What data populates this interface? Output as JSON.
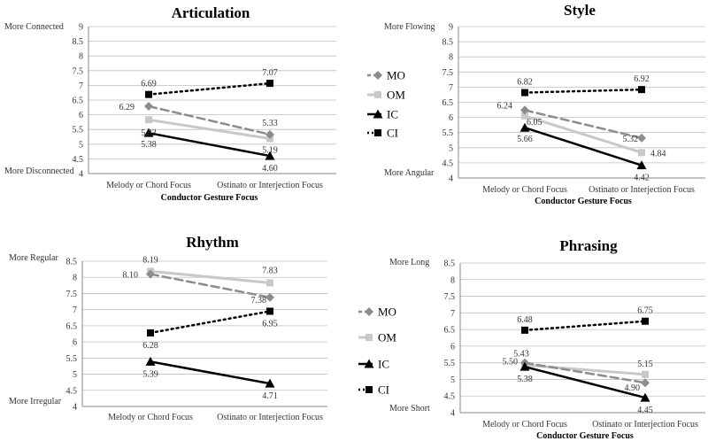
{
  "chart_data": [
    {
      "type": "line",
      "title": "Articulation",
      "xlabel": "Conductor Gesture Focus",
      "ylabel": "",
      "ylim": [
        4,
        9
      ],
      "yticks": [
        "4",
        "4.5",
        "5",
        "5.5",
        "6",
        "6.5",
        "7",
        "7.5",
        "8",
        "8.5",
        "9"
      ],
      "anchor_high": "More Connected",
      "anchor_low": "More Disconnected",
      "categories": [
        "Melody or Chord Focus",
        "Ostinato or Interjection Focus"
      ],
      "series": [
        {
          "name": "MO",
          "values": [
            6.29,
            5.33
          ],
          "labels": [
            "6.29",
            "5.33"
          ]
        },
        {
          "name": "OM",
          "values": [
            5.83,
            5.19
          ],
          "labels": [
            "5.83",
            "5.19"
          ]
        },
        {
          "name": "IC",
          "values": [
            5.38,
            4.6
          ],
          "labels": [
            "5.38",
            "4.60"
          ]
        },
        {
          "name": "CI",
          "values": [
            6.69,
            7.07
          ],
          "labels": [
            "6.69",
            "7.07"
          ]
        }
      ]
    },
    {
      "type": "line",
      "title": "Style",
      "xlabel": "Conductor Gesture Focus",
      "ylabel": "",
      "ylim": [
        4,
        9
      ],
      "yticks": [
        "4",
        "4.5",
        "5",
        "5.5",
        "6",
        "6.5",
        "7",
        "7.5",
        "8",
        "8.5",
        "9"
      ],
      "anchor_high": "More Flowing",
      "anchor_low": "More Angular",
      "categories": [
        "Melody or Chord Focus",
        "Ostinato or Interjection Focus"
      ],
      "series": [
        {
          "name": "MO",
          "values": [
            6.24,
            5.32
          ],
          "labels": [
            "6.24",
            "5.32"
          ]
        },
        {
          "name": "OM",
          "values": [
            6.05,
            4.84
          ],
          "labels": [
            "6.05",
            "4.84"
          ]
        },
        {
          "name": "IC",
          "values": [
            5.66,
            4.42
          ],
          "labels": [
            "5.66",
            "4.42"
          ]
        },
        {
          "name": "CI",
          "values": [
            6.82,
            6.92
          ],
          "labels": [
            "6.82",
            "6.92"
          ]
        }
      ]
    },
    {
      "type": "line",
      "title": "Rhythm",
      "xlabel": "",
      "ylabel": "",
      "ylim": [
        4,
        8.5
      ],
      "yticks": [
        "4",
        "4.5",
        "5",
        "5.5",
        "6",
        "6.5",
        "7",
        "7.5",
        "8",
        "8.5"
      ],
      "anchor_high": "More Regular",
      "anchor_low": "More Irregular",
      "categories": [
        "Melody or Chord Focus",
        "Ostinato or Interjection Focus"
      ],
      "series": [
        {
          "name": "MO",
          "values": [
            8.1,
            7.38
          ],
          "labels": [
            "8.10",
            "7.38"
          ]
        },
        {
          "name": "OM",
          "values": [
            8.19,
            7.83
          ],
          "labels": [
            "8.19",
            "7.83"
          ]
        },
        {
          "name": "IC",
          "values": [
            5.39,
            4.71
          ],
          "labels": [
            "5.39",
            "4.71"
          ]
        },
        {
          "name": "CI",
          "values": [
            6.28,
            6.95
          ],
          "labels": [
            "6.28",
            "6.95"
          ]
        }
      ]
    },
    {
      "type": "line",
      "title": "Phrasing",
      "xlabel": "Conductor Gesture Focus",
      "ylabel": "",
      "ylim": [
        4,
        8.5
      ],
      "yticks": [
        "4",
        "4.5",
        "5",
        "5.5",
        "6",
        "6.5",
        "7",
        "7.5",
        "8",
        "8.5"
      ],
      "anchor_high": "More Long",
      "anchor_low": "More Short",
      "categories": [
        "Melody or Chord Focus",
        "Ostinato or Interjection Focus"
      ],
      "series": [
        {
          "name": "MO",
          "values": [
            5.5,
            4.9
          ],
          "labels": [
            "5.50",
            "4.90"
          ]
        },
        {
          "name": "OM",
          "values": [
            5.43,
            5.15
          ],
          "labels": [
            "5.43",
            "5.15"
          ]
        },
        {
          "name": "IC",
          "values": [
            5.38,
            4.45
          ],
          "labels": [
            "5.38",
            "4.45"
          ]
        },
        {
          "name": "CI",
          "values": [
            6.48,
            6.75
          ],
          "labels": [
            "6.48",
            "6.75"
          ]
        }
      ]
    }
  ],
  "legend": [
    "MO",
    "OM",
    "IC",
    "CI"
  ],
  "colors": {
    "MO": "#8c8c8c",
    "OM": "#c8c8c8",
    "IC": "#000000",
    "CI": "#000000",
    "grid": "#bfbfbf",
    "axis": "#888888",
    "text": "#333333"
  }
}
